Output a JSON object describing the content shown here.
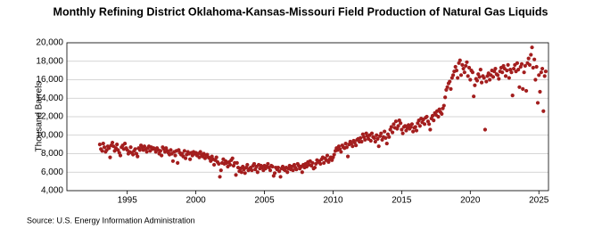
{
  "chart_data": {
    "type": "scatter",
    "title": "Monthly Refining District Oklahoma-Kansas-Missouri Field Production of Natural Gas Liquids",
    "y_label": "Thousand Barrels",
    "source": "Source: U.S. Energy Information Administration",
    "color": "#a31e1e",
    "grid": true,
    "xlim": [
      1990.6,
      2025.7
    ],
    "xticks": [
      1995,
      2000,
      2005,
      2010,
      2015,
      2020,
      2025
    ],
    "ylim": [
      4000,
      20000
    ],
    "yticks": [
      {
        "value": 4000,
        "label": "4,000"
      },
      {
        "value": 6000,
        "label": "6,000"
      },
      {
        "value": 8000,
        "label": "8,000"
      },
      {
        "value": 10000,
        "label": "10,000"
      },
      {
        "value": 12000,
        "label": "12,000"
      },
      {
        "value": 14000,
        "label": "14,000"
      },
      {
        "value": 16000,
        "label": "16,000"
      },
      {
        "value": 18000,
        "label": "18,000"
      },
      {
        "value": 20000,
        "label": "20,000"
      }
    ],
    "x": [
      1993.0,
      1993.08,
      1993.17,
      1993.25,
      1993.33,
      1993.42,
      1993.5,
      1993.58,
      1993.67,
      1993.75,
      1993.83,
      1993.92,
      1994.0,
      1994.08,
      1994.17,
      1994.25,
      1994.33,
      1994.42,
      1994.5,
      1994.58,
      1994.67,
      1994.75,
      1994.83,
      1994.92,
      1995.0,
      1995.08,
      1995.17,
      1995.25,
      1995.33,
      1995.42,
      1995.5,
      1995.58,
      1995.67,
      1995.75,
      1995.83,
      1995.92,
      1996.0,
      1996.08,
      1996.17,
      1996.25,
      1996.33,
      1996.42,
      1996.5,
      1996.58,
      1996.67,
      1996.75,
      1996.83,
      1996.92,
      1997.0,
      1997.08,
      1997.17,
      1997.25,
      1997.33,
      1997.42,
      1997.5,
      1997.58,
      1997.67,
      1997.75,
      1997.83,
      1997.92,
      1998.0,
      1998.08,
      1998.17,
      1998.25,
      1998.33,
      1998.42,
      1998.5,
      1998.58,
      1998.67,
      1998.75,
      1998.83,
      1998.92,
      1999.0,
      1999.08,
      1999.17,
      1999.25,
      1999.33,
      1999.42,
      1999.5,
      1999.58,
      1999.67,
      1999.75,
      1999.83,
      1999.92,
      2000.0,
      2000.08,
      2000.17,
      2000.25,
      2000.33,
      2000.42,
      2000.5,
      2000.58,
      2000.67,
      2000.75,
      2000.83,
      2000.92,
      2001.0,
      2001.08,
      2001.17,
      2001.25,
      2001.33,
      2001.42,
      2001.5,
      2001.58,
      2001.67,
      2001.75,
      2001.83,
      2001.92,
      2002.0,
      2002.08,
      2002.17,
      2002.25,
      2002.33,
      2002.42,
      2002.5,
      2002.58,
      2002.67,
      2002.75,
      2002.83,
      2002.92,
      2003.0,
      2003.08,
      2003.17,
      2003.25,
      2003.33,
      2003.42,
      2003.5,
      2003.58,
      2003.67,
      2003.75,
      2003.83,
      2003.92,
      2004.0,
      2004.08,
      2004.17,
      2004.25,
      2004.33,
      2004.42,
      2004.5,
      2004.58,
      2004.67,
      2004.75,
      2004.83,
      2004.92,
      2005.0,
      2005.08,
      2005.17,
      2005.25,
      2005.33,
      2005.42,
      2005.5,
      2005.58,
      2005.67,
      2005.75,
      2005.83,
      2005.92,
      2006.0,
      2006.08,
      2006.17,
      2006.25,
      2006.33,
      2006.42,
      2006.5,
      2006.58,
      2006.67,
      2006.75,
      2006.83,
      2006.92,
      2007.0,
      2007.08,
      2007.17,
      2007.25,
      2007.33,
      2007.42,
      2007.5,
      2007.58,
      2007.67,
      2007.75,
      2007.83,
      2007.92,
      2008.0,
      2008.08,
      2008.17,
      2008.25,
      2008.33,
      2008.42,
      2008.5,
      2008.58,
      2008.67,
      2008.75,
      2008.83,
      2008.92,
      2009.0,
      2009.08,
      2009.17,
      2009.25,
      2009.33,
      2009.42,
      2009.5,
      2009.58,
      2009.67,
      2009.75,
      2009.83,
      2009.92,
      2010.0,
      2010.08,
      2010.17,
      2010.25,
      2010.33,
      2010.42,
      2010.5,
      2010.58,
      2010.67,
      2010.75,
      2010.83,
      2010.92,
      2011.0,
      2011.08,
      2011.17,
      2011.25,
      2011.33,
      2011.42,
      2011.5,
      2011.58,
      2011.67,
      2011.75,
      2011.83,
      2011.92,
      2012.0,
      2012.08,
      2012.17,
      2012.25,
      2012.33,
      2012.42,
      2012.5,
      2012.58,
      2012.67,
      2012.75,
      2012.83,
      2012.92,
      2013.0,
      2013.08,
      2013.17,
      2013.25,
      2013.33,
      2013.42,
      2013.5,
      2013.58,
      2013.67,
      2013.75,
      2013.83,
      2013.92,
      2014.0,
      2014.08,
      2014.17,
      2014.25,
      2014.33,
      2014.42,
      2014.5,
      2014.58,
      2014.67,
      2014.75,
      2014.83,
      2014.92,
      2015.0,
      2015.08,
      2015.17,
      2015.25,
      2015.33,
      2015.42,
      2015.5,
      2015.58,
      2015.67,
      2015.75,
      2015.83,
      2015.92,
      2016.0,
      2016.08,
      2016.17,
      2016.25,
      2016.33,
      2016.42,
      2016.5,
      2016.58,
      2016.67,
      2016.75,
      2016.83,
      2016.92,
      2017.0,
      2017.08,
      2017.17,
      2017.25,
      2017.33,
      2017.42,
      2017.5,
      2017.58,
      2017.67,
      2017.75,
      2017.83,
      2017.92,
      2018.0,
      2018.08,
      2018.17,
      2018.25,
      2018.33,
      2018.42,
      2018.5,
      2018.58,
      2018.67,
      2018.75,
      2018.83,
      2018.92,
      2019.0,
      2019.08,
      2019.17,
      2019.25,
      2019.33,
      2019.42,
      2019.5,
      2019.58,
      2019.67,
      2019.75,
      2019.83,
      2019.92,
      2020.0,
      2020.08,
      2020.17,
      2020.25,
      2020.33,
      2020.42,
      2020.5,
      2020.58,
      2020.67,
      2020.75,
      2020.83,
      2020.92,
      2021.0,
      2021.08,
      2021.17,
      2021.25,
      2021.33,
      2021.42,
      2021.5,
      2021.58,
      2021.67,
      2021.75,
      2021.83,
      2021.92,
      2022.0,
      2022.08,
      2022.17,
      2022.25,
      2022.33,
      2022.42,
      2022.5,
      2022.58,
      2022.67,
      2022.75,
      2022.83,
      2022.92,
      2023.0,
      2023.08,
      2023.17,
      2023.25,
      2023.33,
      2023.42,
      2023.5,
      2023.58,
      2023.67,
      2023.75,
      2023.83,
      2023.92,
      2024.0,
      2024.08,
      2024.17,
      2024.25,
      2024.33,
      2024.42,
      2024.5,
      2024.58,
      2024.67,
      2024.75,
      2024.83,
      2024.92,
      2025.0,
      2025.08,
      2025.17,
      2025.25,
      2025.33,
      2025.42,
      2025.5
    ],
    "values": [
      9000,
      8500,
      8300,
      9100,
      8700,
      8200,
      8400,
      8800,
      8600,
      7600,
      8900,
      9200,
      8800,
      8300,
      8600,
      9000,
      8400,
      8100,
      7800,
      8700,
      8900,
      8500,
      9100,
      8600,
      8400,
      8000,
      8200,
      8700,
      8100,
      7900,
      8300,
      8500,
      8000,
      7700,
      8600,
      8400,
      8900,
      8700,
      8400,
      8800,
      8500,
      8200,
      8600,
      8800,
      8300,
      8700,
      8500,
      8600,
      8500,
      8200,
      8600,
      8400,
      8000,
      8300,
      7800,
      8700,
      8500,
      8200,
      8600,
      8300,
      8100,
      7900,
      8400,
      8000,
      7200,
      8200,
      7800,
      8300,
      7000,
      8400,
      8100,
      7900,
      8000,
      7700,
      8300,
      7500,
      7900,
      8200,
      8000,
      7400,
      8100,
      7800,
      8200,
      8000,
      8100,
      7800,
      8000,
      7600,
      8200,
      7900,
      7700,
      8000,
      7500,
      7800,
      7900,
      7600,
      7500,
      7200,
      7700,
      7400,
      6800,
      7300,
      7600,
      7100,
      6900,
      5500,
      6200,
      7000,
      7400,
      6900,
      7200,
      7000,
      6600,
      7100,
      6800,
      7300,
      7500,
      6700,
      7000,
      5700,
      7000,
      6500,
      6100,
      6400,
      6000,
      6600,
      6300,
      5900,
      6500,
      6800,
      6200,
      6400,
      6500,
      6200,
      6700,
      6900,
      6300,
      6600,
      6000,
      6800,
      6400,
      6700,
      6500,
      6200,
      6700,
      6400,
      6600,
      6900,
      6500,
      6200,
      6700,
      6600,
      5600,
      5900,
      6500,
      6300,
      6500,
      6100,
      5500,
      6400,
      6600,
      6300,
      6200,
      6500,
      6000,
      6400,
      6700,
      6300,
      6600,
      6200,
      6800,
      6500,
      6300,
      6900,
      6700,
      6400,
      6600,
      6000,
      6800,
      6500,
      6900,
      6600,
      7100,
      6800,
      7200,
      6700,
      7000,
      6400,
      6500,
      6900,
      7300,
      7100,
      7200,
      6900,
      7400,
      7600,
      7000,
      7500,
      7300,
      7800,
      7100,
      7400,
      7600,
      7300,
      7600,
      7900,
      8300,
      8600,
      8400,
      8800,
      8500,
      8200,
      8900,
      8700,
      8600,
      9100,
      8700,
      7700,
      9000,
      9300,
      9100,
      8800,
      9400,
      9200,
      8900,
      9500,
      9600,
      9300,
      9700,
      9300,
      10100,
      9800,
      9500,
      10200,
      9900,
      9600,
      10000,
      9400,
      10200,
      9800,
      9700,
      9300,
      10000,
      9600,
      8800,
      9900,
      10200,
      9500,
      9800,
      10400,
      9700,
      9100,
      10100,
      9800,
      10600,
      10900,
      10300,
      11200,
      10800,
      11500,
      10700,
      11000,
      11600,
      11300,
      10600,
      10200,
      10900,
      11000,
      10500,
      10800,
      11100,
      10700,
      10900,
      11200,
      10400,
      10800,
      10900,
      10500,
      11300,
      11600,
      11000,
      11800,
      11400,
      11700,
      11200,
      11900,
      12000,
      11500,
      11200,
      10600,
      11800,
      12100,
      11600,
      12400,
      12200,
      12600,
      12000,
      12800,
      12500,
      12300,
      12900,
      13200,
      14100,
      14900,
      15200,
      15600,
      15800,
      15000,
      16200,
      16500,
      16900,
      17400,
      17000,
      16200,
      17800,
      18100,
      16500,
      17600,
      17200,
      16800,
      17500,
      17900,
      16400,
      17300,
      16000,
      17000,
      16800,
      14200,
      15400,
      16100,
      15900,
      16600,
      16300,
      17100,
      15700,
      16400,
      16200,
      10600,
      15800,
      16400,
      16700,
      16000,
      16500,
      17000,
      16300,
      16900,
      17200,
      16600,
      16500,
      16100,
      16900,
      17300,
      16800,
      17500,
      17200,
      16400,
      17000,
      17600,
      16200,
      17100,
      16800,
      14300,
      17200,
      17600,
      16900,
      17800,
      17100,
      15200,
      17400,
      17700,
      15000,
      16800,
      17500,
      14800,
      17800,
      18300,
      17600,
      18700,
      19500,
      17300,
      18200,
      16000,
      17400,
      13500,
      16500,
      14700,
      16800,
      17200,
      12600,
      16400,
      16900
    ]
  }
}
